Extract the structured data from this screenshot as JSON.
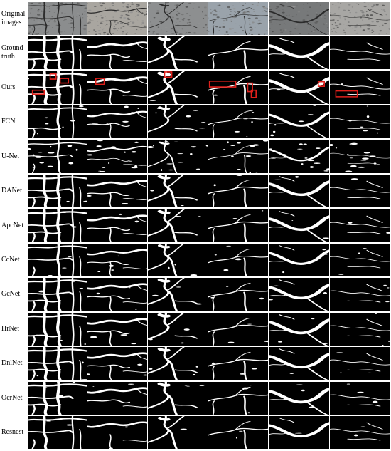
{
  "figure": {
    "row_labels": [
      "Original\nimages",
      "Ground\ntruth",
      "Ours",
      "FCN",
      "U-Net",
      "DANet",
      "ApcNet",
      "CcNet",
      "GcNet",
      "HrNet",
      "DnlNet",
      "OcrNet",
      "Resnest"
    ],
    "columns": 6,
    "colors": {
      "background": "#ffffff",
      "mask_background": "#000000",
      "crack": "#ffffff",
      "highlight_box": "#e0201b",
      "photo_tones": [
        "#8b8d8e",
        "#a9a6a0",
        "#8d8f90",
        "#9aa3ab",
        "#77797a",
        "#a8a7a4"
      ]
    },
    "highlight_boxes_row": "Ours"
  }
}
